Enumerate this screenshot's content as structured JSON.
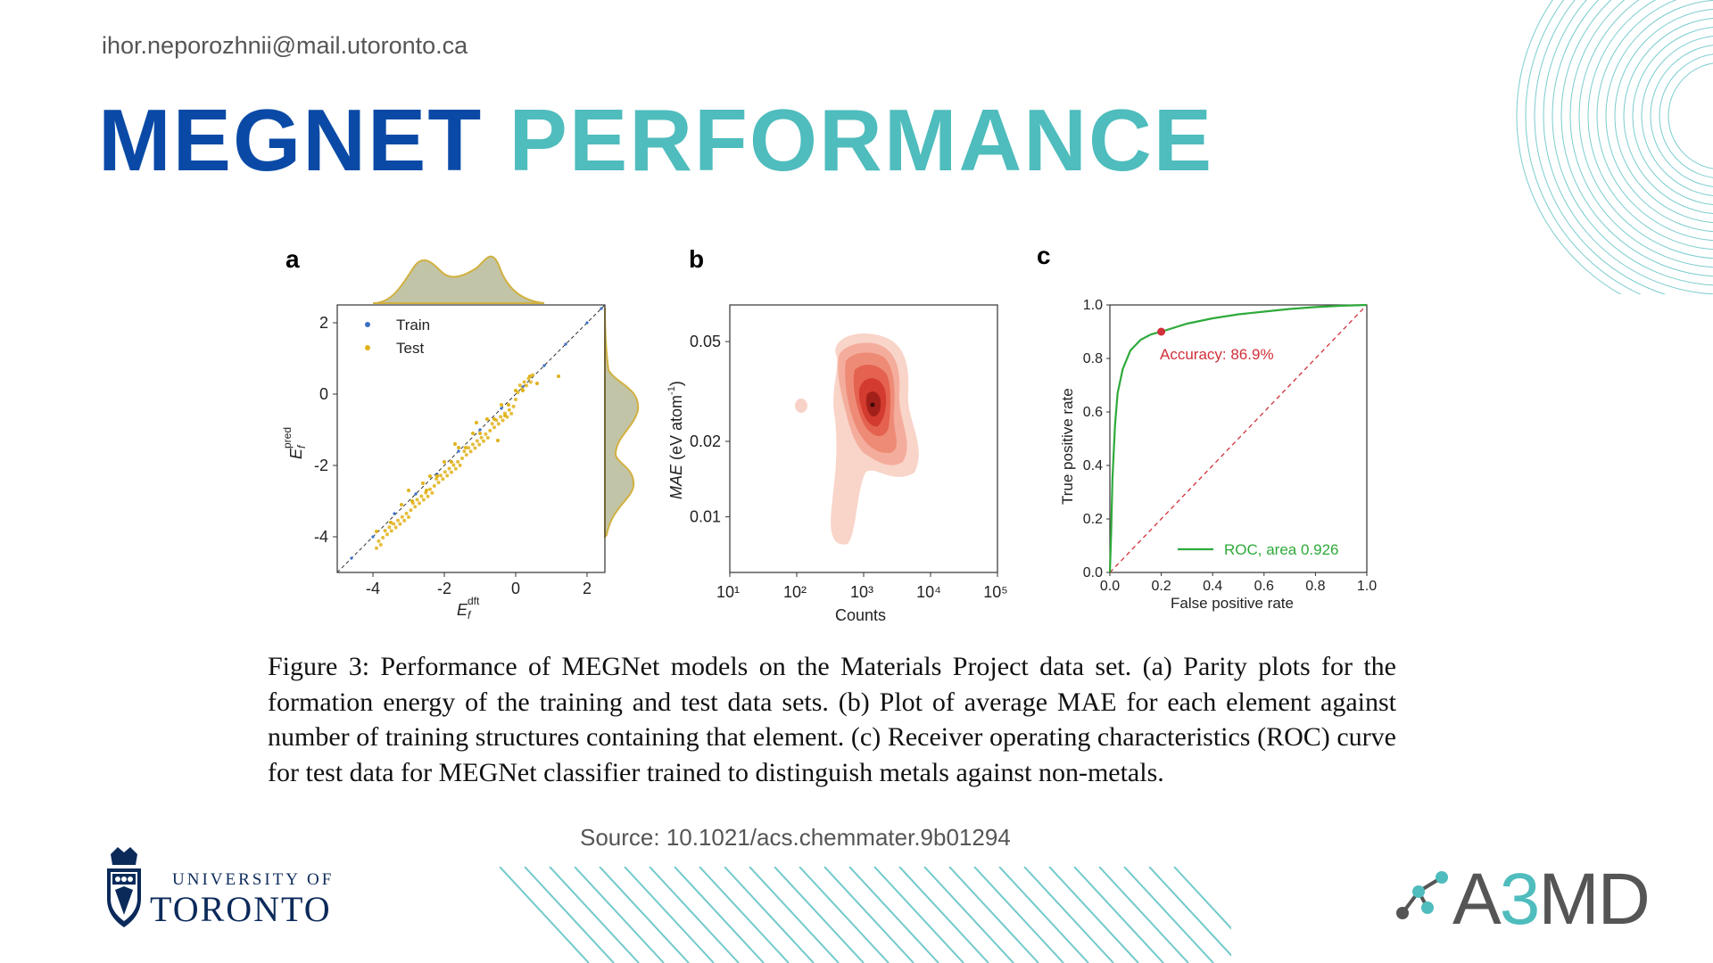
{
  "header": {
    "email": "ihor.neporozhnii@mail.utoronto.ca",
    "title_part1": "MEGNET",
    "title_part2": "PERFORMANCE"
  },
  "figure": {
    "panel_a_label": "a",
    "panel_b_label": "b",
    "panel_c_label": "c",
    "caption": "Figure 3: Performance of MEGNet models on the Materials Project data set. (a) Parity plots for the formation energy of the training and test data sets. (b) Plot of average MAE for each element against number of training structures containing that element. (c) Receiver operating characteristics (ROC) curve for test data for MEGNet classifier trained to distinguish metals against non-metals."
  },
  "source": "Source: 10.1021/acs.chemmater.9b01294",
  "footer": {
    "university_line1": "UNIVERSITY OF",
    "university_line2": "TORONTO",
    "brand_prefix": "A",
    "brand_digit": "3",
    "brand_suffix": "MD"
  },
  "colors": {
    "title_dark": "#0a4aa6",
    "title_teal": "#4fbcbd",
    "train": "#3a6fc4",
    "test": "#e0b21a",
    "roc": "#2eaa3a",
    "accuracy": "#d0303a"
  },
  "chart_data": [
    {
      "type": "scatter",
      "panel": "a",
      "xlabel": "E_f^dft",
      "ylabel": "E_f^pred",
      "xticks": [
        "-4",
        "-2",
        "0",
        "2"
      ],
      "yticks": [
        "2",
        "0",
        "-2",
        "-4"
      ],
      "xlim": [
        -5,
        2.5
      ],
      "ylim": [
        -5,
        2.5
      ],
      "legend": [
        "Train",
        "Test"
      ],
      "legend_position": "top-left",
      "series": [
        {
          "name": "Train",
          "points": [
            [
              -4.6,
              -4.6
            ],
            [
              -4.0,
              -4.0
            ],
            [
              -3.4,
              -3.35
            ],
            [
              -2.8,
              -2.8
            ],
            [
              -2.2,
              -2.25
            ],
            [
              -1.6,
              -1.6
            ],
            [
              -1.0,
              -1.0
            ],
            [
              -0.4,
              -0.4
            ],
            [
              0.2,
              0.2
            ],
            [
              0.8,
              0.8
            ],
            [
              1.4,
              1.4
            ],
            [
              2.0,
              2.0
            ],
            [
              2.4,
              2.4
            ]
          ]
        },
        {
          "name": "Test",
          "points": [
            [
              -3.9,
              -3.85
            ],
            [
              -3.5,
              -3.6
            ],
            [
              -3.2,
              -3.1
            ],
            [
              -2.9,
              -3.0
            ],
            [
              -2.6,
              -2.5
            ],
            [
              -2.4,
              -2.3
            ],
            [
              -2.2,
              -2.3
            ],
            [
              -2.0,
              -1.9
            ],
            [
              -1.8,
              -1.9
            ],
            [
              -1.6,
              -1.5
            ],
            [
              -1.4,
              -1.5
            ],
            [
              -1.2,
              -1.1
            ],
            [
              -1.0,
              -1.1
            ],
            [
              -0.8,
              -0.7
            ],
            [
              -0.6,
              -0.7
            ],
            [
              -0.4,
              -0.3
            ],
            [
              -0.2,
              -0.3
            ],
            [
              0.0,
              0.1
            ],
            [
              0.2,
              0.1
            ],
            [
              0.4,
              0.5
            ],
            [
              -2.5,
              -2.7
            ],
            [
              -1.1,
              -0.8
            ],
            [
              -0.3,
              -0.6
            ],
            [
              -1.7,
              -1.4
            ],
            [
              0.6,
              0.3
            ],
            [
              1.2,
              0.5
            ],
            [
              -0.5,
              -1.3
            ],
            [
              -3.0,
              -2.7
            ]
          ]
        }
      ]
    },
    {
      "type": "heatmap",
      "panel": "b",
      "xlabel": "Counts",
      "ylabel": "MAE (eV atom⁻¹)",
      "xscale": "log",
      "xticks": [
        "10¹",
        "10²",
        "10³",
        "10⁴",
        "10⁵"
      ],
      "yticks": [
        "0.05",
        "0.02",
        "0.01"
      ],
      "peak": {
        "counts": 2500,
        "mae": 0.022
      }
    },
    {
      "type": "line",
      "panel": "c",
      "xlabel": "False positive rate",
      "ylabel": "True positive rate",
      "xlim": [
        0,
        1
      ],
      "ylim": [
        0,
        1
      ],
      "xticks": [
        "0.0",
        "0.2",
        "0.4",
        "0.6",
        "0.8",
        "1.0"
      ],
      "yticks": [
        "1.0",
        "0.8",
        "0.6",
        "0.4",
        "0.2",
        "0.0"
      ],
      "legend": [
        "ROC, area 0.926"
      ],
      "legend_position": "bottom-right",
      "annotation": "Accuracy: 86.9%",
      "marker": {
        "x": 0.2,
        "y": 0.9
      },
      "series": [
        {
          "name": "ROC, area 0.926",
          "x": [
            0.0,
            0.005,
            0.01,
            0.02,
            0.03,
            0.05,
            0.08,
            0.12,
            0.16,
            0.2,
            0.3,
            0.4,
            0.5,
            0.6,
            0.7,
            0.8,
            0.9,
            1.0
          ],
          "y": [
            0.0,
            0.15,
            0.35,
            0.55,
            0.67,
            0.76,
            0.83,
            0.87,
            0.89,
            0.9,
            0.93,
            0.95,
            0.965,
            0.975,
            0.985,
            0.992,
            0.997,
            1.0
          ]
        },
        {
          "name": "",
          "x": [
            0,
            1
          ],
          "y": [
            0,
            1
          ]
        }
      ]
    }
  ]
}
